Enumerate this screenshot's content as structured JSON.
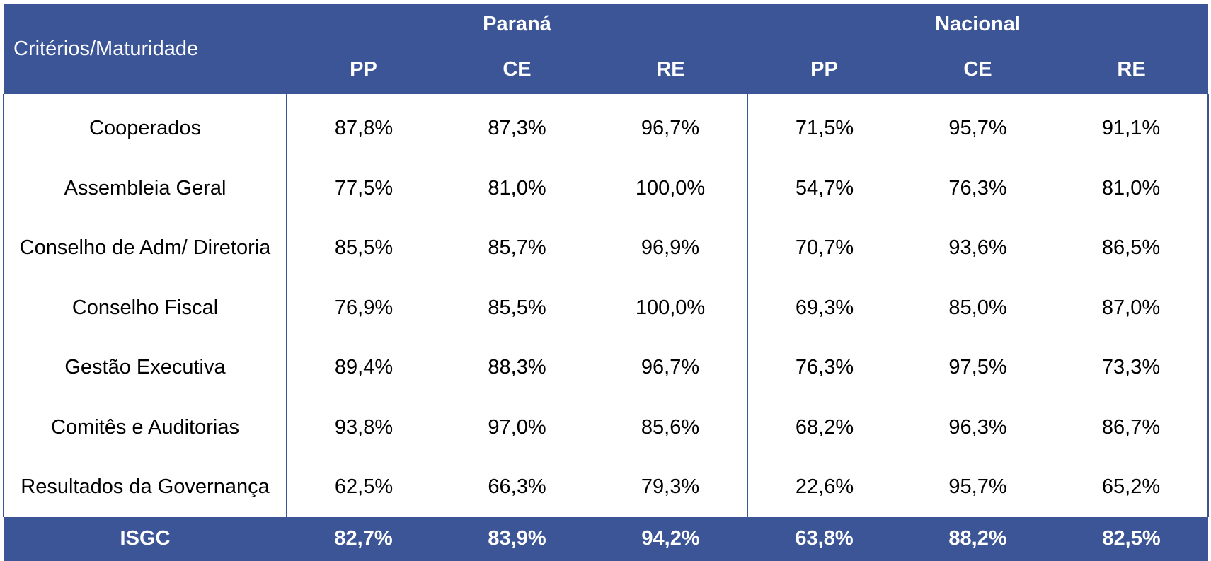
{
  "header": {
    "criteria_label": "Critérios/Maturidade",
    "groups": [
      "Paraná",
      "Nacional"
    ],
    "subcolumns": [
      "PP",
      "CE",
      "RE",
      "PP",
      "CE",
      "RE"
    ]
  },
  "rows": [
    {
      "label": "Cooperados",
      "values": [
        "87,8%",
        "87,3%",
        "96,7%",
        "71,5%",
        "95,7%",
        "91,1%"
      ]
    },
    {
      "label": "Assembleia Geral",
      "values": [
        "77,5%",
        "81,0%",
        "100,0%",
        "54,7%",
        "76,3%",
        "81,0%"
      ]
    },
    {
      "label": "Conselho de Adm/ Diretoria",
      "values": [
        "85,5%",
        "85,7%",
        "96,9%",
        "70,7%",
        "93,6%",
        "86,5%"
      ]
    },
    {
      "label": "Conselho Fiscal",
      "values": [
        "76,9%",
        "85,5%",
        "100,0%",
        "69,3%",
        "85,0%",
        "87,0%"
      ]
    },
    {
      "label": "Gestão Executiva",
      "values": [
        "89,4%",
        "88,3%",
        "96,7%",
        "76,3%",
        "97,5%",
        "73,3%"
      ]
    },
    {
      "label": "Comitês e Auditorias",
      "values": [
        "93,8%",
        "97,0%",
        "85,6%",
        "68,2%",
        "96,3%",
        "86,7%"
      ]
    },
    {
      "label": "Resultados da Governança",
      "values": [
        "62,5%",
        "66,3%",
        "79,3%",
        "22,6%",
        "95,7%",
        "65,2%"
      ]
    }
  ],
  "footer": {
    "label": "ISGC",
    "values": [
      "82,7%",
      "83,9%",
      "94,2%",
      "63,8%",
      "88,2%",
      "82,5%"
    ]
  },
  "colors": {
    "header_bg": "#3c5597",
    "header_text": "#ffffff"
  }
}
